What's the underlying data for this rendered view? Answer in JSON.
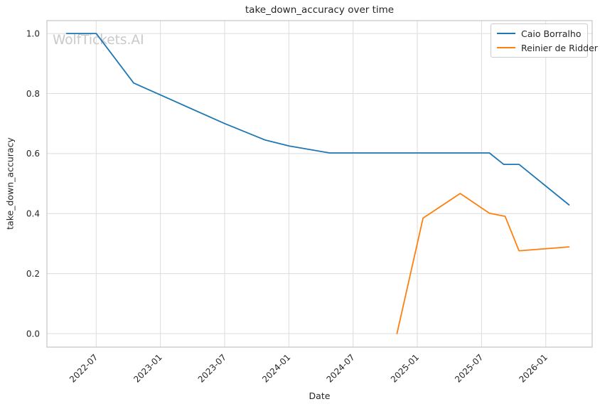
{
  "chart_data": {
    "type": "line",
    "title": "take_down_accuracy over time",
    "xlabel": "Date",
    "ylabel": "take_down_accuracy",
    "watermark": "WolfTickets.AI",
    "grid": true,
    "legend_position": "top-right",
    "background_color": "#ffffff",
    "grid_color": "#dcdcdc",
    "spine_color": "#c4c4c4",
    "text_color": "#262626",
    "watermark_color": "#c9c9c9",
    "x_tick_labels": [
      "2022-07",
      "2023-01",
      "2023-07",
      "2024-01",
      "2024-07",
      "2025-01",
      "2025-07",
      "2026-01"
    ],
    "y_tick_labels": [
      "0.0",
      "0.2",
      "0.4",
      "0.6",
      "0.8",
      "1.0"
    ],
    "y_tick_values": [
      0.0,
      0.2,
      0.4,
      0.6,
      0.8,
      1.0
    ],
    "ylim": [
      -0.045,
      1.043
    ],
    "xlim_dates": [
      "2022-02-13",
      "2026-05-11"
    ],
    "series": [
      {
        "name": "Caio Borralho",
        "color": "#1f77b4",
        "points": [
          {
            "date": "2022-04-08",
            "value": 1.0
          },
          {
            "date": "2022-07-01",
            "value": 1.0
          },
          {
            "date": "2022-10-16",
            "value": 0.835
          },
          {
            "date": "2023-07-01",
            "value": 0.7
          },
          {
            "date": "2023-10-25",
            "value": 0.645
          },
          {
            "date": "2024-01-02",
            "value": 0.625
          },
          {
            "date": "2024-04-25",
            "value": 0.602
          },
          {
            "date": "2025-07-23",
            "value": 0.602
          },
          {
            "date": "2025-09-03",
            "value": 0.564
          },
          {
            "date": "2025-10-16",
            "value": 0.564
          },
          {
            "date": "2026-03-06",
            "value": 0.429
          }
        ]
      },
      {
        "name": "Reinier de Ridder",
        "color": "#ff7f0e",
        "points": [
          {
            "date": "2024-11-04",
            "value": 0.0
          },
          {
            "date": "2025-01-17",
            "value": 0.385
          },
          {
            "date": "2025-05-01",
            "value": 0.467
          },
          {
            "date": "2025-07-23",
            "value": 0.401
          },
          {
            "date": "2025-09-07",
            "value": 0.391
          },
          {
            "date": "2025-10-16",
            "value": 0.276
          },
          {
            "date": "2026-03-06",
            "value": 0.289
          }
        ]
      }
    ]
  }
}
